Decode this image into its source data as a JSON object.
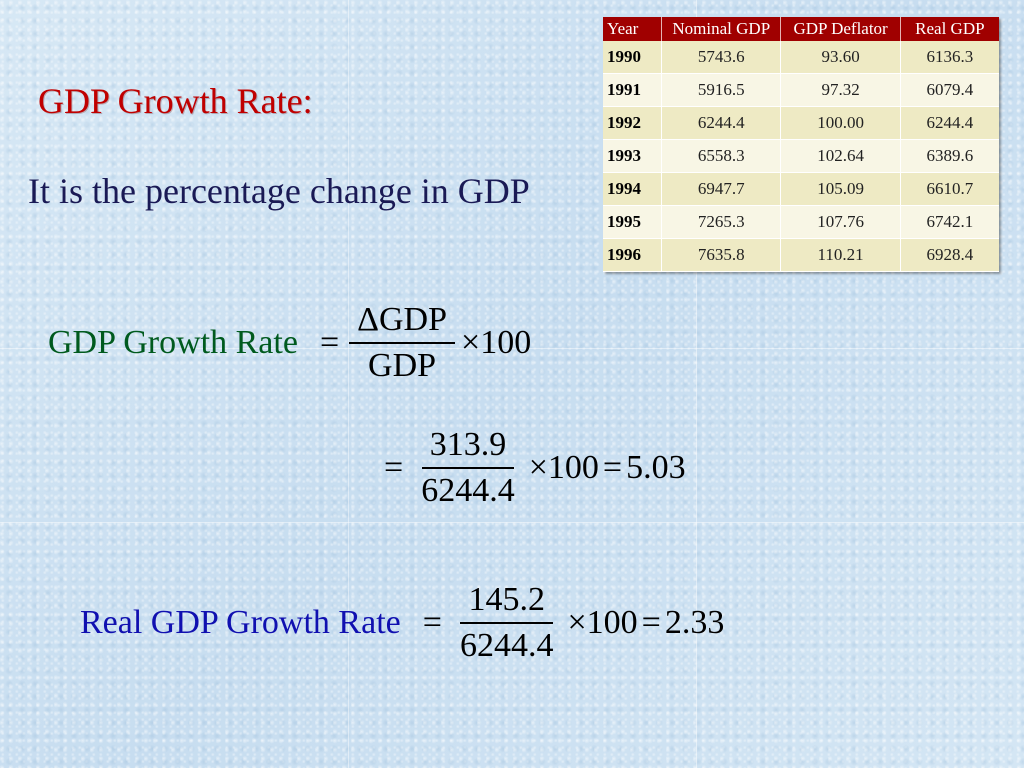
{
  "title": "GDP Growth Rate:",
  "description": "It is the percentage change in GDP",
  "table": {
    "headers": [
      "Year",
      "Nominal GDP",
      "GDP Deflator",
      "Real GDP"
    ],
    "rows": [
      [
        "1990",
        "5743.6",
        "93.60",
        "6136.3"
      ],
      [
        "1991",
        "5916.5",
        "97.32",
        "6079.4"
      ],
      [
        "1992",
        "6244.4",
        "100.00",
        "6244.4"
      ],
      [
        "1993",
        "6558.3",
        "102.64",
        "6389.6"
      ],
      [
        "1994",
        "6947.7",
        "105.09",
        "6610.7"
      ],
      [
        "1995",
        "7265.3",
        "107.76",
        "6742.1"
      ],
      [
        "1996",
        "7635.8",
        "110.21",
        "6928.4"
      ]
    ]
  },
  "formula": {
    "label": "GDP Growth Rate",
    "equals": "=",
    "numerator": "ΔGDP",
    "denominator": "GDP",
    "times": "×100"
  },
  "nominal_calc": {
    "equals": "=",
    "numerator": "313.9",
    "denominator": "6244.4",
    "times": "×100",
    "equals2": "=",
    "result": "5.03"
  },
  "real_calc": {
    "label": "Real GDP Growth Rate",
    "equals": "=",
    "numerator": "145.2",
    "denominator": "6244.4",
    "times": "×100",
    "equals2": "=",
    "result": "2.33"
  }
}
